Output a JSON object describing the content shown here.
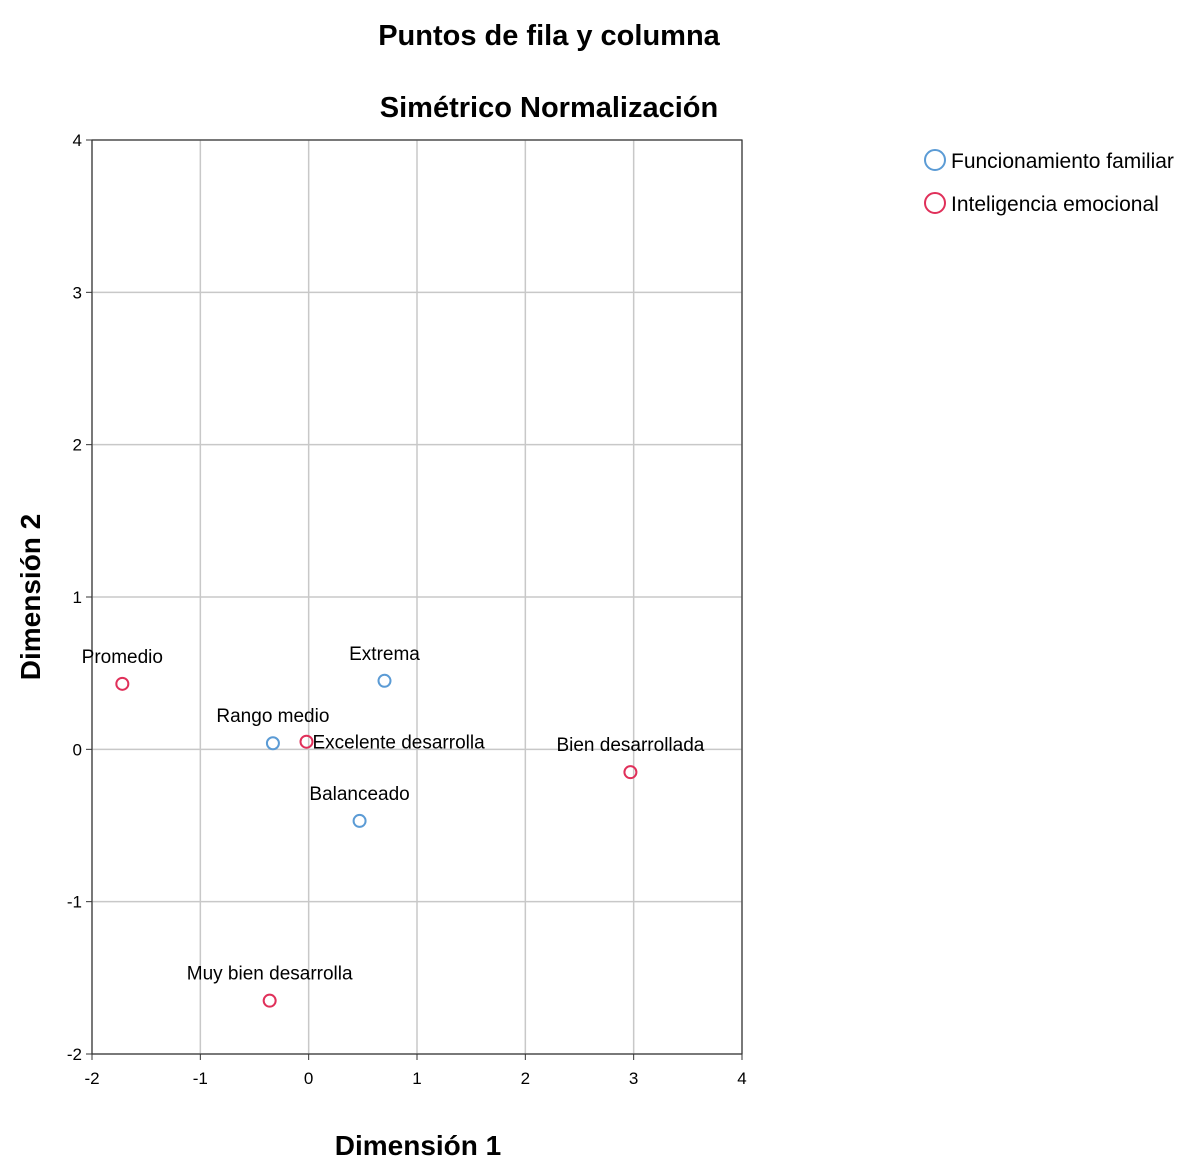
{
  "chart_data": {
    "type": "scatter",
    "title": "Puntos de fila y columna",
    "subtitle": "Simétrico Normalización",
    "xlabel": "Dimensión 1",
    "ylabel": "Dimensión 2",
    "xlim": [
      -2,
      4
    ],
    "ylim": [
      -2,
      4
    ],
    "xticks": [
      "-2",
      "-1",
      "0",
      "1",
      "2",
      "3",
      "4"
    ],
    "yticks": [
      "-2",
      "-1",
      "0",
      "1",
      "2",
      "3",
      "4"
    ],
    "grid": true,
    "legend_position": "top-right",
    "series": [
      {
        "name": "Funcionamiento familiar",
        "color": "#5b9bd5",
        "points": [
          {
            "label": "Extrema",
            "x": 0.7,
            "y": 0.45
          },
          {
            "label": "Rango medio",
            "x": -0.33,
            "y": 0.04
          },
          {
            "label": "Balanceado",
            "x": 0.47,
            "y": -0.47
          }
        ]
      },
      {
        "name": "Inteligencia emocional",
        "color": "#e0305a",
        "points": [
          {
            "label": "Promedio",
            "x": -1.72,
            "y": 0.43
          },
          {
            "label": "Excelente desarrolla",
            "x": -0.02,
            "y": 0.05
          },
          {
            "label": "Bien desarrollada",
            "x": 2.97,
            "y": -0.15
          },
          {
            "label": "Muy bien  desarrolla",
            "x": -0.36,
            "y": -1.65
          }
        ]
      }
    ]
  }
}
